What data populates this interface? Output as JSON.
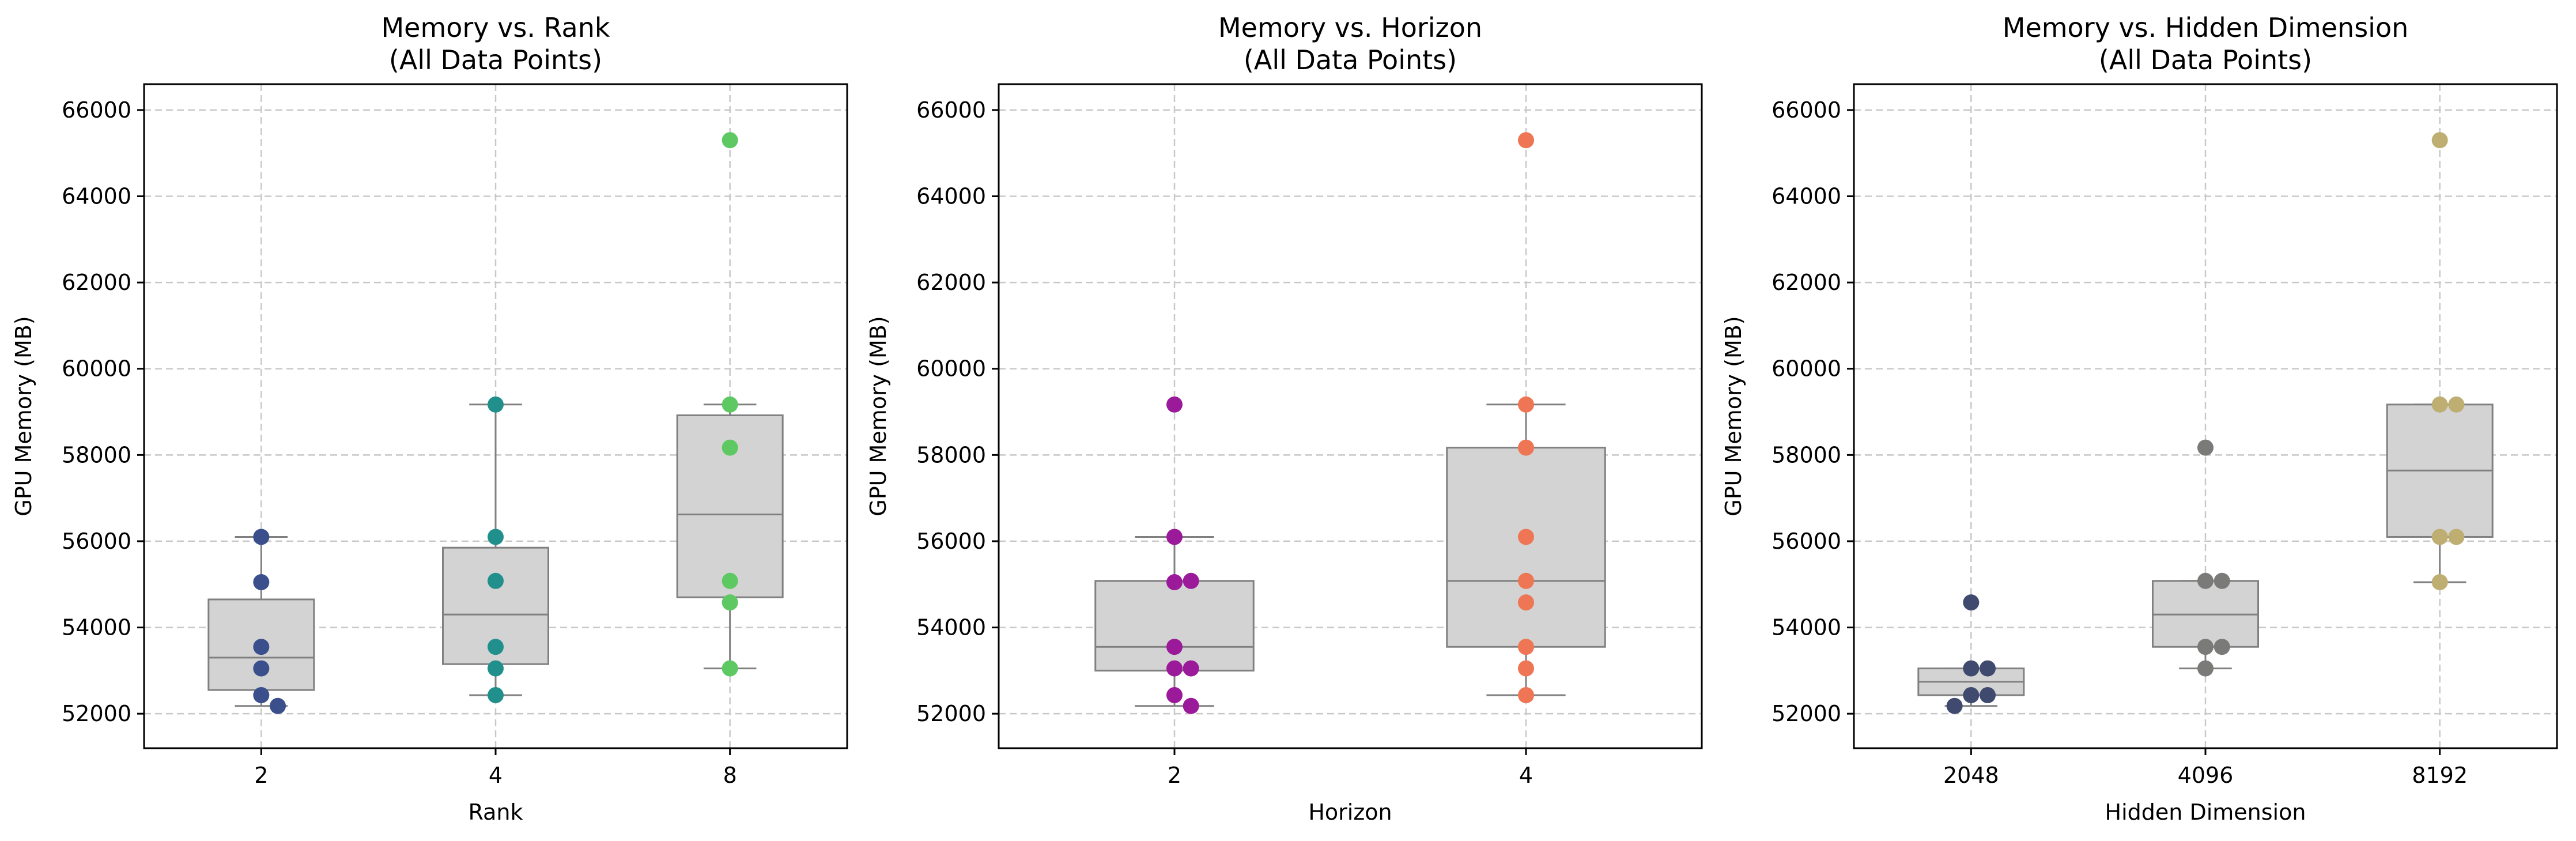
{
  "chart_data": [
    {
      "type": "box",
      "title": "Memory vs. Rank\n(All Data Points)",
      "xlabel": "Rank",
      "ylabel": "GPU Memory (MB)",
      "ylim": [
        51200,
        66600
      ],
      "yticks": [
        52000,
        54000,
        56000,
        58000,
        60000,
        62000,
        64000,
        66000
      ],
      "grid": true,
      "categories": [
        "2",
        "4",
        "8"
      ],
      "colors": [
        "#3b4f8c",
        "#21908d",
        "#5ec962"
      ],
      "boxes": [
        {
          "q1": 52550,
          "median": 53300,
          "q3": 54650,
          "whislo": 52180,
          "whishi": 56100
        },
        {
          "q1": 53150,
          "median": 54300,
          "q3": 55850,
          "whislo": 52430,
          "whishi": 59170
        },
        {
          "q1": 54700,
          "median": 56620,
          "q3": 58920,
          "whislo": 53050,
          "whishi": 59170
        }
      ],
      "points": [
        [
          56100,
          55050,
          53550,
          53050,
          52430,
          52180
        ],
        [
          59170,
          56100,
          55080,
          53550,
          53050,
          52430
        ],
        [
          65300,
          59170,
          58170,
          55080,
          54580,
          53050
        ]
      ]
    },
    {
      "type": "box",
      "title": "Memory vs. Horizon\n(All Data Points)",
      "xlabel": "Horizon",
      "ylabel": "GPU Memory (MB)",
      "ylim": [
        51200,
        66600
      ],
      "yticks": [
        52000,
        54000,
        56000,
        58000,
        60000,
        62000,
        64000,
        66000
      ],
      "grid": true,
      "categories": [
        "2",
        "4"
      ],
      "colors": [
        "#9a1a9a",
        "#ee7654"
      ],
      "boxes": [
        {
          "q1": 53000,
          "median": 53550,
          "q3": 55080,
          "whislo": 52180,
          "whishi": 56100
        },
        {
          "q1": 53550,
          "median": 55080,
          "q3": 58170,
          "whislo": 52430,
          "whishi": 59170
        }
      ],
      "points": [
        [
          59170,
          56100,
          55050,
          55080,
          53550,
          53050,
          53050,
          52430,
          52180
        ],
        [
          65300,
          59170,
          58170,
          56100,
          55080,
          54580,
          53550,
          53050,
          52430
        ]
      ]
    },
    {
      "type": "box",
      "title": "Memory vs. Hidden Dimension\n(All Data Points)",
      "xlabel": "Hidden Dimension",
      "ylabel": "GPU Memory (MB)",
      "ylim": [
        51200,
        66600
      ],
      "yticks": [
        52000,
        54000,
        56000,
        58000,
        60000,
        62000,
        64000,
        66000
      ],
      "grid": true,
      "categories": [
        "2048",
        "4096",
        "8192"
      ],
      "colors": [
        "#3f4a6e",
        "#7a7a78",
        "#bfae72"
      ],
      "boxes": [
        {
          "q1": 52430,
          "median": 52740,
          "q3": 53050,
          "whislo": 52180,
          "whishi": 53050
        },
        {
          "q1": 53550,
          "median": 54300,
          "q3": 55080,
          "whislo": 53050,
          "whishi": 55080
        },
        {
          "q1": 56100,
          "median": 57640,
          "q3": 59170,
          "whislo": 55050,
          "whishi": 59170
        }
      ],
      "points": [
        [
          54580,
          53050,
          53050,
          52430,
          52430,
          52180
        ],
        [
          58170,
          55080,
          55080,
          53550,
          53550,
          53050
        ],
        [
          65300,
          59170,
          59170,
          56100,
          56100,
          55050
        ]
      ]
    }
  ]
}
